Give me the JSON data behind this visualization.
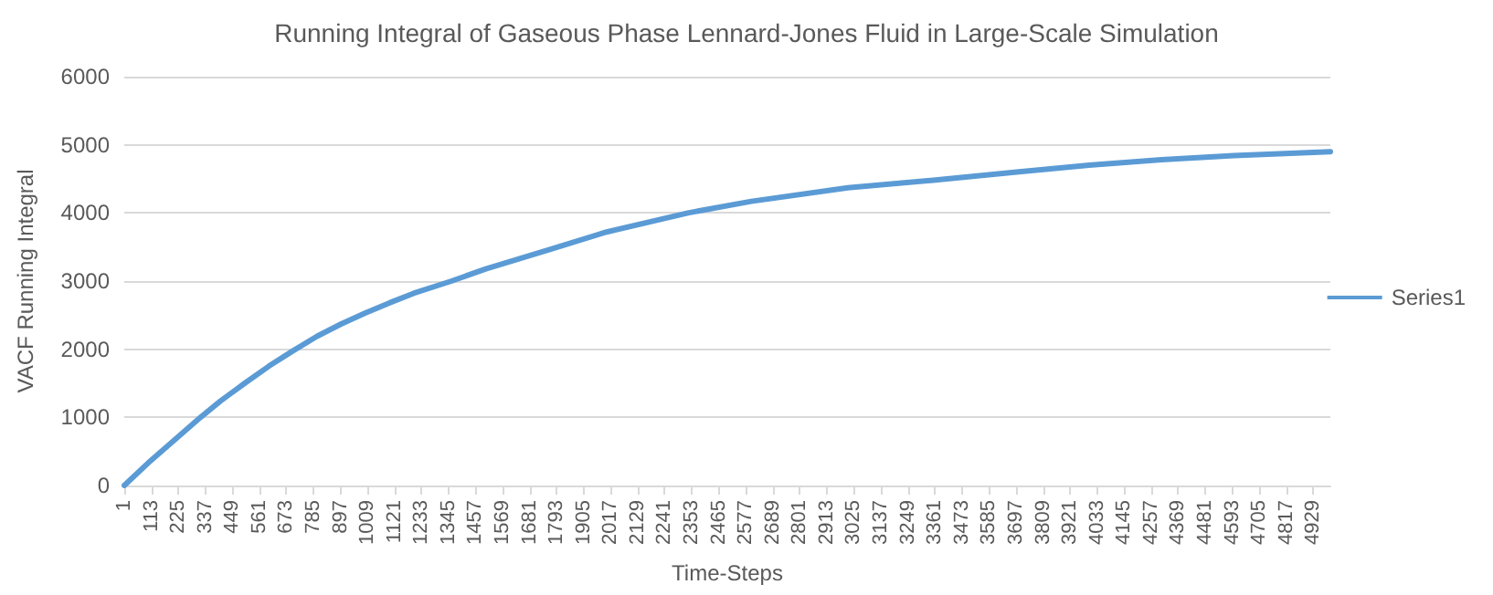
{
  "chart_data": {
    "type": "line",
    "title": "Running Integral of Gaseous Phase Lennard-Jones Fluid in Large-Scale Simulation",
    "xlabel": "Time-Steps",
    "ylabel": "VACF Running Integral",
    "x": [
      1,
      100,
      200,
      317,
      400,
      500,
      600,
      693,
      800,
      900,
      1000,
      1100,
      1200,
      1357,
      1500,
      1771,
      2000,
      2337,
      2600,
      3000,
      3354,
      3700,
      4000,
      4300,
      4600,
      5000
    ],
    "series": [
      {
        "name": "Series1",
        "color": "#5b9bd5",
        "values": [
          0,
          330,
          640,
          1000,
          1240,
          1500,
          1750,
          1960,
          2190,
          2370,
          2530,
          2680,
          2820,
          3000,
          3180,
          3470,
          3720,
          4000,
          4170,
          4370,
          4480,
          4600,
          4700,
          4780,
          4840,
          4900
        ]
      }
    ],
    "xlim": [
      1,
      5000
    ],
    "xticks": [
      1,
      113,
      225,
      337,
      449,
      561,
      673,
      785,
      897,
      1009,
      1121,
      1233,
      1345,
      1457,
      1569,
      1681,
      1793,
      1905,
      2017,
      2129,
      2241,
      2353,
      2465,
      2577,
      2689,
      2801,
      2913,
      3025,
      3137,
      3249,
      3361,
      3473,
      3585,
      3697,
      3809,
      3921,
      4033,
      4145,
      4257,
      4369,
      4481,
      4593,
      4705,
      4817,
      4929
    ],
    "ylim": [
      0,
      6000
    ],
    "yticks": [
      0,
      1000,
      2000,
      3000,
      4000,
      5000,
      6000
    ],
    "grid": "y",
    "legend": "right",
    "marker": "none",
    "line_style": "solid"
  }
}
